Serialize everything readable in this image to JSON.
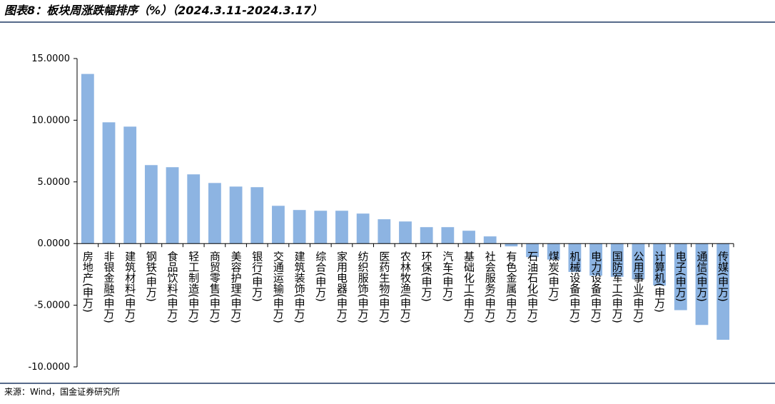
{
  "chart_data": {
    "type": "bar",
    "title": "图表8：板块周涨跌幅排序（%）（2024.3.11-2024.3.17）",
    "source": "来源：Wind，国金证券研究所",
    "categories": [
      "房地产(申万)",
      "非银金融(申万)",
      "建筑材料(申万)",
      "钢铁(申万)",
      "食品饮料(申万)",
      "轻工制造(申万)",
      "商贸零售(申万)",
      "美容护理(申万)",
      "银行(申万)",
      "交通运输(申万)",
      "建筑装饰(申万)",
      "综合(申万)",
      "家用电器(申万)",
      "纺织服饰(申万)",
      "医药生物(申万)",
      "农林牧渔(申万)",
      "环保(申万)",
      "汽车(申万)",
      "基础化工(申万)",
      "社会服务(申万)",
      "有色金属(申万)",
      "石油石化(申万)",
      "煤炭(申万)",
      "机械设备(申万)",
      "电力设备(申万)",
      "国防军工(申万)",
      "公用事业(申万)",
      "计算机(申万)",
      "电子(申万)",
      "通信(申万)",
      "传媒(申万)"
    ],
    "values": [
      13.75,
      9.83,
      9.48,
      6.36,
      6.19,
      5.61,
      4.91,
      4.62,
      4.57,
      3.06,
      2.72,
      2.66,
      2.66,
      2.43,
      1.97,
      1.79,
      1.33,
      1.33,
      1.04,
      0.58,
      -0.23,
      -1.1,
      -1.3,
      -2.3,
      -2.6,
      -2.7,
      -2.9,
      -3.4,
      -5.4,
      -6.6,
      -7.8
    ],
    "color": "#8db4e2",
    "ylim": [
      -10,
      15
    ],
    "yticks": [
      {
        "value": -10,
        "label": "-10.0000"
      },
      {
        "value": -5,
        "label": "-5.0000"
      },
      {
        "value": 0,
        "label": "0.0000"
      },
      {
        "value": 5,
        "label": "5.0000"
      },
      {
        "value": 10,
        "label": "10.0000"
      },
      {
        "value": 15,
        "label": "15.0000"
      }
    ]
  }
}
